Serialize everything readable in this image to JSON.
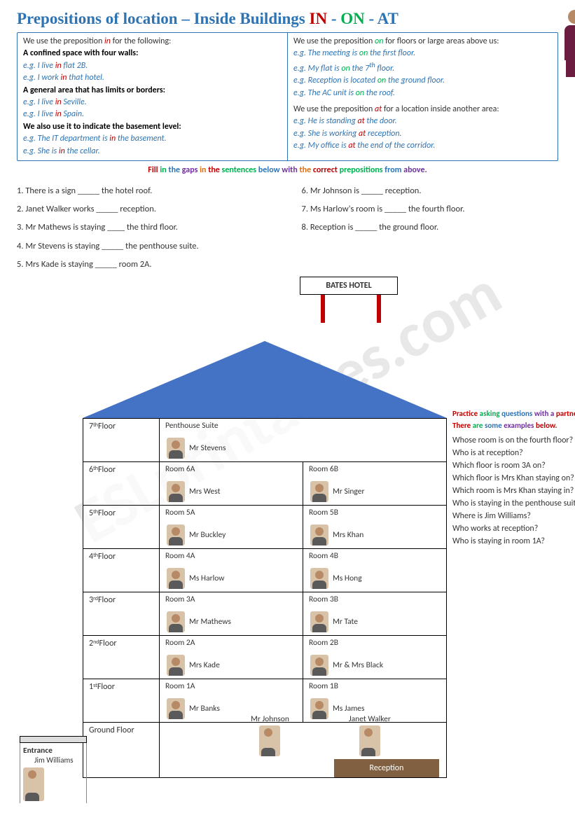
{
  "title": {
    "t1": "Prepositions of location",
    "dash": " – ",
    "t2": "Inside Buildings ",
    "in": "IN",
    "sep": " - ",
    "on": "ON",
    "at": "AT"
  },
  "rules": {
    "left": {
      "l1": "We use the preposition ",
      "l1p": "in",
      "l1b": " for the following:",
      "h1": "A confined space with four walls:",
      "e1a": "e.g.",
      "e1b": " I live ",
      "e1p": "in",
      "e1c": " flat 2B.",
      "e2a": "e.g.",
      "e2b": " I work ",
      "e2p": "in",
      "e2c": " that hotel.",
      "h2": "A general area that has limits or borders:",
      "e3a": "e.g.",
      "e3b": " I live ",
      "e3p": "in",
      "e3c": " Seville.",
      "e4a": "e.g.",
      "e4b": " I live ",
      "e4p": "in",
      "e4c": " Spain.",
      "h3": "We also use it to indicate the basement level:",
      "e5a": "e.g.",
      "e5b": " The IT department is ",
      "e5p": "in",
      "e5c": " the basement.",
      "e6a": "e.g.",
      "e6b": " She is ",
      "e6p": "in",
      "e6c": " the cellar."
    },
    "right": {
      "l1": "We use the preposition ",
      "l1p": "on",
      "l1b": " for floors or large areas above us:",
      "e1a": "e.g.",
      "e1b": " The meeting is ",
      "e1p": "on",
      "e1c": " the first floor.",
      "e2a": "e.g.",
      "e2b": " My flat is ",
      "e2p": "on",
      "e2c": " the 7",
      "e2sup": "th",
      "e2d": " floor.",
      "e3a": "e.g.",
      "e3b": " Reception is located ",
      "e3p": "on",
      "e3c": " the ground floor.",
      "e4a": "e.g.",
      "e4b": " The AC unit is ",
      "e4p": "on",
      "e4c": " the roof.",
      "l2": "We use the preposition ",
      "l2p": "at",
      "l2b": " for a location inside another area:",
      "e5a": "e.g.",
      "e5b": " He is standing ",
      "e5p": "at",
      "e5c": " the door.",
      "e6a": "e.g.",
      "e6b": " She is working ",
      "e6p": "at",
      "e6c": " reception.",
      "e7a": "e.g.",
      "e7b": " My office is ",
      "e7p": "at",
      "e7c": " the end of the corridor."
    }
  },
  "instruction": {
    "p1": "Fill",
    "p2": "in",
    "p3": "the",
    "p4": "gaps",
    "p5": "in",
    "p6": "the",
    "p7": "sentences",
    "p8": "below",
    "p9": "with",
    "p10": "the",
    "p11": "correct",
    "p12": "prepositions",
    "p13": "from",
    "p14": "above."
  },
  "q": {
    "q1": "1. There is a sign _____ the hotel roof.",
    "q2": "2. Janet Walker works _____ reception.",
    "q3": "3. Mr Mathews is staying ____ the third floor.",
    "q4": "4. Mr Stevens is staying _____ the penthouse suite.",
    "q5": "5. Mrs Kade is staying _____ room 2A.",
    "q6": "6. Mr Johnson is  _____ reception.",
    "q7": "7. Ms Harlow's room is _____ the fourth floor.",
    "q8": "8. Reception is _____ the ground floor."
  },
  "hotel": {
    "sign": "BATES HOTEL",
    "floors": [
      {
        "label": "7",
        "sup": "th",
        "word": " Floor",
        "roomA": "Penthouse Suite",
        "personA": "Mr Stevens",
        "roomB": "",
        "personB": ""
      },
      {
        "label": "6",
        "sup": "th",
        "word": " Floor",
        "roomA": "Room 6A",
        "personA": "Mrs West",
        "roomB": "Room 6B",
        "personB": "Mr Singer"
      },
      {
        "label": "5",
        "sup": "th",
        "word": " Floor",
        "roomA": "Room 5A",
        "personA": "Mr Buckley",
        "roomB": "Room 5B",
        "personB": "Mrs Khan"
      },
      {
        "label": "4",
        "sup": "th",
        "word": " Floor",
        "roomA": "Room 4A",
        "personA": "Ms Harlow",
        "roomB": "Room 4B",
        "personB": "Ms Hong"
      },
      {
        "label": "3",
        "sup": "rd",
        "word": " Floor",
        "roomA": "Room 3A",
        "personA": "Mr Mathews",
        "roomB": "Room 3B",
        "personB": "Mr Tate"
      },
      {
        "label": "2",
        "sup": "nd",
        "word": " Floor",
        "roomA": "Room 2A",
        "personA": "Mrs Kade",
        "roomB": "Room 2B",
        "personB": "Mr & Mrs Black"
      },
      {
        "label": "1",
        "sup": "st",
        "word": " Floor",
        "roomA": "Room 1A",
        "personA": "Mr Banks",
        "roomB": "Room 1B",
        "personB": "Ms James"
      }
    ],
    "ground": {
      "label": "Ground Floor",
      "p1": "Mr Johnson",
      "p2": "Janet Walker",
      "reception": "Reception"
    },
    "entrance": {
      "label": "Entrance",
      "person": "Jim Williams"
    }
  },
  "practice": {
    "h1": "Practice",
    "h2": "asking",
    "h3": "questions",
    "h4": "with a",
    "h5": "partner.",
    "h6": "There",
    "h7": "are",
    "h8": "some",
    "h9": "examples",
    "h10": "below.",
    "items": [
      "Whose room is on the fourth floor?",
      "Who is at reception?",
      "Which floor is room 3A on?",
      "Which floor is Mrs Khan staying on?",
      "Which room is Mrs Khan staying in?",
      "Who is staying in the penthouse suite?",
      "Where is Jim Williams?",
      "Who works at reception?",
      "Who is staying in room 1A?"
    ]
  },
  "watermark": "ESLprintables.com"
}
